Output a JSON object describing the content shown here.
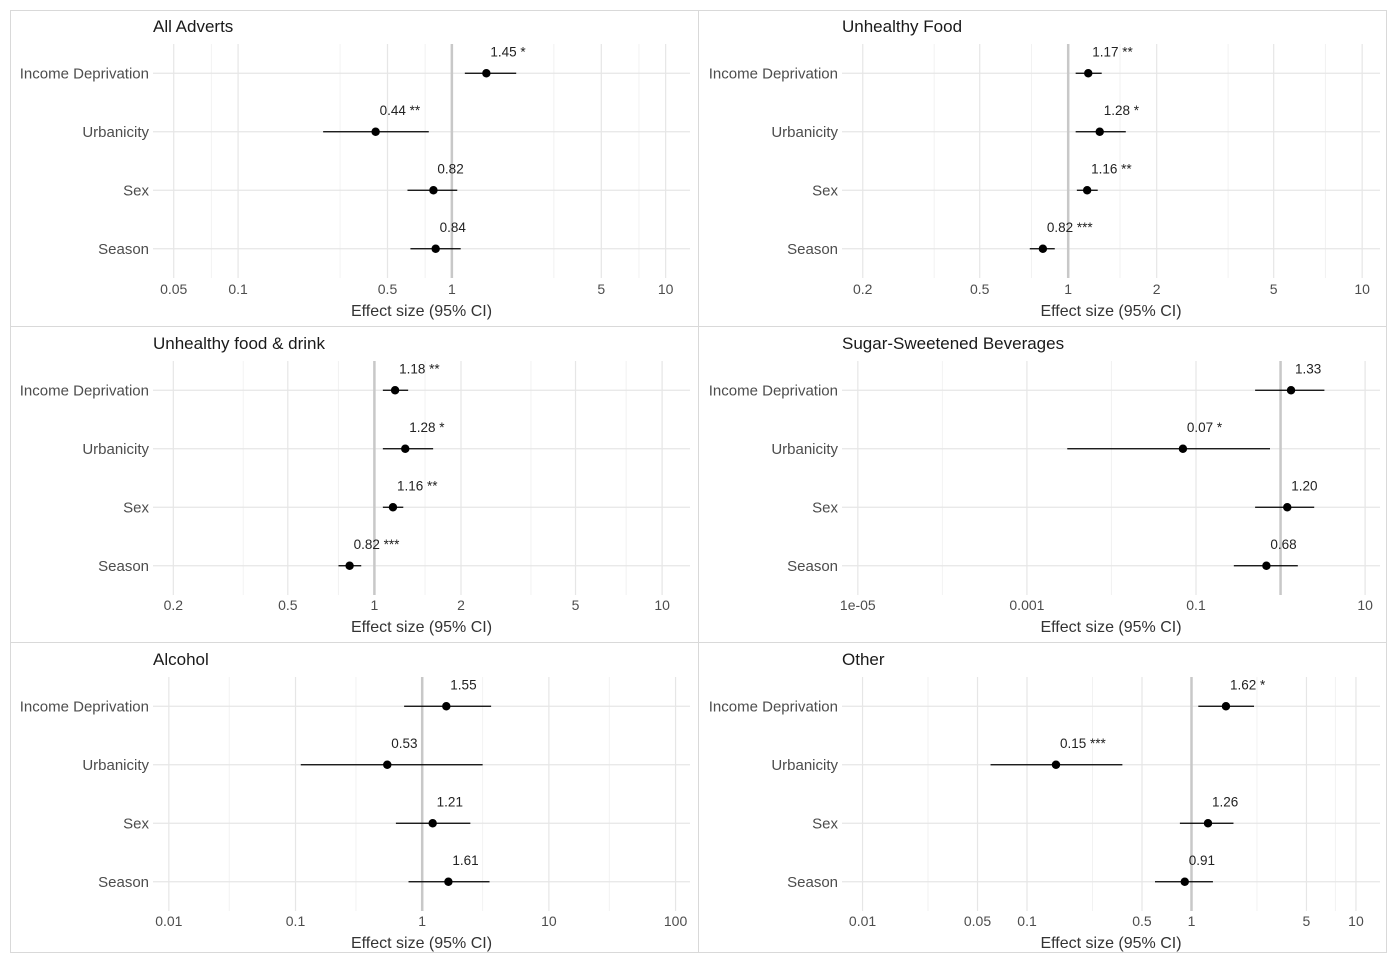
{
  "chart_data": [
    {
      "type": "scatter",
      "title": "All Adverts",
      "xlabel": "Effect size (95% CI)",
      "x_scale": "log",
      "xlim": [
        0.04,
        13
      ],
      "ticks": [
        0.05,
        0.1,
        0.5,
        1,
        5,
        10
      ],
      "tick_labels": [
        "0.05",
        "0.1",
        "0.5",
        "1",
        "5",
        "10"
      ],
      "minor_gridlines": [
        0.075,
        0.3,
        0.75,
        3,
        7.5
      ],
      "reference_line": 1,
      "categories": [
        "Income Deprivation",
        "Urbanicity",
        "Sex",
        "Season"
      ],
      "estimates": [
        1.45,
        0.44,
        0.82,
        0.84
      ],
      "ci_low": [
        1.15,
        0.25,
        0.62,
        0.64
      ],
      "ci_high": [
        2.0,
        0.78,
        1.06,
        1.1
      ],
      "labels": [
        "1.45 *",
        "0.44 **",
        "0.82",
        "0.84"
      ]
    },
    {
      "type": "scatter",
      "title": "Unhealthy Food",
      "xlabel": "Effect size (95% CI)",
      "x_scale": "log",
      "xlim": [
        0.17,
        11.5
      ],
      "ticks": [
        0.2,
        0.5,
        1,
        2,
        5,
        10
      ],
      "tick_labels": [
        "0.2",
        "0.5",
        "1",
        "2",
        "5",
        "10"
      ],
      "minor_gridlines": [
        0.35,
        0.75,
        1.5,
        3.5,
        7.5
      ],
      "reference_line": 1,
      "categories": [
        "Income Deprivation",
        "Urbanicity",
        "Sex",
        "Season"
      ],
      "estimates": [
        1.17,
        1.28,
        1.16,
        0.82
      ],
      "ci_low": [
        1.06,
        1.06,
        1.07,
        0.74
      ],
      "ci_high": [
        1.3,
        1.57,
        1.26,
        0.9
      ],
      "labels": [
        "1.17 **",
        "1.28 *",
        "1.16 **",
        "0.82 ***"
      ]
    },
    {
      "type": "scatter",
      "title": "Unhealthy food & drink",
      "xlabel": "Effect size (95% CI)",
      "x_scale": "log",
      "xlim": [
        0.17,
        12.5
      ],
      "ticks": [
        0.2,
        0.5,
        1,
        2,
        5,
        10
      ],
      "tick_labels": [
        "0.2",
        "0.5",
        "1",
        "2",
        "5",
        "10"
      ],
      "minor_gridlines": [
        0.35,
        0.75,
        1.5,
        3.5,
        7.5
      ],
      "reference_line": 1,
      "categories": [
        "Income Deprivation",
        "Urbanicity",
        "Sex",
        "Season"
      ],
      "estimates": [
        1.18,
        1.28,
        1.16,
        0.82
      ],
      "ci_low": [
        1.07,
        1.07,
        1.07,
        0.75
      ],
      "ci_high": [
        1.31,
        1.6,
        1.26,
        0.9
      ],
      "labels": [
        "1.18 **",
        "1.28 *",
        "1.16 **",
        "0.82 ***"
      ]
    },
    {
      "type": "scatter",
      "title": "Sugar-Sweetened Beverages",
      "xlabel": "Effect size (95% CI)",
      "x_scale": "log",
      "xlim": [
        6.5e-06,
        15
      ],
      "ticks": [
        1e-05,
        0.001,
        0.1,
        10
      ],
      "tick_labels": [
        "1e-05",
        "0.001",
        "0.1",
        "10"
      ],
      "minor_gridlines": [
        0.0001,
        0.01,
        1
      ],
      "reference_line": 1,
      "categories": [
        "Income Deprivation",
        "Urbanicity",
        "Sex",
        "Season"
      ],
      "estimates": [
        1.33,
        0.07,
        1.2,
        0.68
      ],
      "ci_low": [
        0.5,
        0.003,
        0.5,
        0.28
      ],
      "ci_high": [
        3.3,
        0.75,
        2.5,
        1.6
      ],
      "labels": [
        "1.33",
        "0.07 *",
        "1.20",
        "0.68"
      ]
    },
    {
      "type": "scatter",
      "title": "Alcohol",
      "xlabel": "Effect size (95% CI)",
      "x_scale": "log",
      "xlim": [
        0.0075,
        130
      ],
      "ticks": [
        0.01,
        0.1,
        1,
        10,
        100
      ],
      "tick_labels": [
        "0.01",
        "0.1",
        "1",
        "10",
        "100"
      ],
      "minor_gridlines": [
        0.03,
        0.3,
        3,
        30
      ],
      "reference_line": 1,
      "categories": [
        "Income Deprivation",
        "Urbanicity",
        "Sex",
        "Season"
      ],
      "estimates": [
        1.55,
        0.53,
        1.21,
        1.61
      ],
      "ci_low": [
        0.72,
        0.11,
        0.62,
        0.78
      ],
      "ci_high": [
        3.5,
        3.0,
        2.4,
        3.4
      ],
      "labels": [
        "1.55",
        "0.53",
        "1.21",
        "1.61"
      ]
    },
    {
      "type": "scatter",
      "title": "Other",
      "xlabel": "Effect size (95% CI)",
      "x_scale": "log",
      "xlim": [
        0.0075,
        14
      ],
      "ticks": [
        0.01,
        0.05,
        0.1,
        0.5,
        1,
        5,
        10
      ],
      "tick_labels": [
        "0.01",
        "0.05",
        "0.1",
        "0.5",
        "1",
        "5",
        "10"
      ],
      "minor_gridlines": [
        0.025,
        0.25,
        2.5,
        7.5
      ],
      "reference_line": 1,
      "categories": [
        "Income Deprivation",
        "Urbanicity",
        "Sex",
        "Season"
      ],
      "estimates": [
        1.62,
        0.15,
        1.26,
        0.91
      ],
      "ci_low": [
        1.1,
        0.06,
        0.85,
        0.6
      ],
      "ci_high": [
        2.4,
        0.38,
        1.8,
        1.35
      ],
      "labels": [
        "1.62 *",
        "0.15 ***",
        "1.26",
        "0.91"
      ]
    }
  ]
}
